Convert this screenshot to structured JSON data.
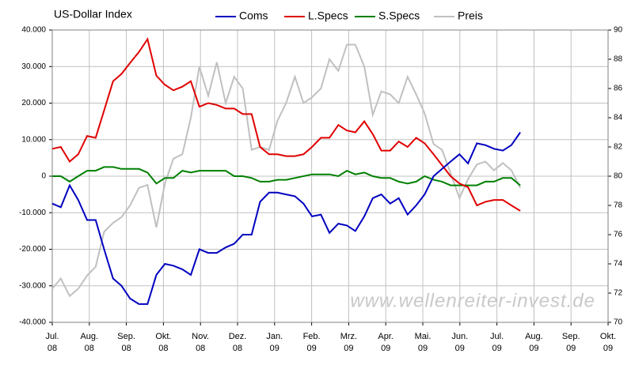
{
  "chart_data": {
    "type": "line",
    "title": "US-Dollar Index",
    "x": [
      0,
      0.23,
      0.47,
      0.7,
      0.94,
      1.17,
      1.4,
      1.64,
      1.87,
      2.1,
      2.34,
      2.57,
      2.81,
      3.04,
      3.27,
      3.51,
      3.74,
      3.97,
      4.21,
      4.44,
      4.68,
      4.91,
      5.14,
      5.38,
      5.61,
      5.85,
      6.08,
      6.31,
      6.55,
      6.78,
      7.01,
      7.25,
      7.48,
      7.72,
      7.95,
      8.18,
      8.42,
      8.65,
      8.88,
      9.12,
      9.35,
      9.59,
      9.82,
      10.05,
      10.29,
      10.52,
      10.75,
      10.99,
      11.22,
      11.46,
      11.69,
      11.92,
      12.16,
      12.39,
      12.63
    ],
    "series": [
      {
        "name": "Coms",
        "color": "#0000c0",
        "axis": "y",
        "values": [
          -7500,
          -8500,
          -2500,
          -6500,
          -12000,
          -12000,
          -20000,
          -28000,
          -30000,
          -33500,
          -35000,
          -35000,
          -27000,
          -24000,
          -24500,
          -25500,
          -27000,
          -20000,
          -21000,
          -21000,
          -19500,
          -18500,
          -16000,
          -16000,
          -7000,
          -4500,
          -4500,
          -5000,
          -5500,
          -7500,
          -11000,
          -10500,
          -15500,
          -13000,
          -13500,
          -15000,
          -11000,
          -6000,
          -5000,
          -7500,
          -6000,
          -10500,
          -8000,
          -5000,
          0,
          2000,
          4000,
          6000,
          3500,
          9000,
          8500,
          7500,
          7000,
          8500,
          12000
        ]
      },
      {
        "name": "L.Specs",
        "color": "#e00000",
        "axis": "y",
        "values": [
          7500,
          8000,
          4000,
          6000,
          11000,
          10500,
          18000,
          26000,
          28000,
          31000,
          34000,
          37500,
          27500,
          25000,
          23500,
          24500,
          26000,
          19000,
          20000,
          19500,
          18500,
          18500,
          17000,
          17000,
          8000,
          6000,
          6000,
          5500,
          5500,
          6000,
          8000,
          10500,
          10500,
          14000,
          12500,
          12000,
          15000,
          11500,
          7000,
          7000,
          9500,
          8000,
          10500,
          9000,
          6000,
          3000,
          0,
          -2000,
          -3000,
          -8000,
          -7000,
          -6500,
          -6500,
          -8000,
          -9500
        ]
      },
      {
        "name": "S.Specs",
        "color": "#008000",
        "axis": "y",
        "values": [
          0,
          0,
          -1500,
          0,
          1500,
          1500,
          2500,
          2500,
          2000,
          2000,
          2000,
          1000,
          -2000,
          -500,
          -500,
          1500,
          1000,
          1500,
          1500,
          1500,
          1500,
          0,
          0,
          -500,
          -1500,
          -1500,
          -1000,
          -1000,
          -500,
          0,
          500,
          500,
          500,
          0,
          1500,
          500,
          1000,
          0,
          -500,
          -500,
          -1500,
          -2000,
          -1500,
          0,
          -1000,
          -1500,
          -2500,
          -2500,
          -2500,
          -2500,
          -1500,
          -1500,
          -500,
          -500,
          -2500
        ]
      },
      {
        "name": "Preis",
        "color": "#c0c0c0",
        "axis": "y2",
        "values": [
          72.3,
          73,
          71.8,
          72.3,
          73.2,
          73.8,
          76.2,
          76.8,
          77.2,
          78,
          79.2,
          79.4,
          76.5,
          79.5,
          81.2,
          81.5,
          84,
          87.5,
          85.5,
          87.8,
          85,
          86.8,
          86,
          81.8,
          82,
          81.8,
          83.8,
          85,
          86.8,
          85,
          85.4,
          86,
          88,
          87.2,
          89,
          89,
          87.5,
          84.2,
          85.8,
          85.6,
          85,
          86.8,
          85.6,
          84.3,
          82.2,
          81.8,
          80.2,
          78.5,
          79.8,
          80.8,
          81,
          80.4,
          80.9,
          80.4,
          79.2
        ]
      }
    ],
    "xlim": [
      0,
      15
    ],
    "xticks": [
      {
        "value": 0,
        "label": [
          "Jul.",
          "08"
        ]
      },
      {
        "value": 1,
        "label": [
          "Aug.",
          "08"
        ]
      },
      {
        "value": 2,
        "label": [
          "Sep.",
          "08"
        ]
      },
      {
        "value": 3,
        "label": [
          "Okt.",
          "08"
        ]
      },
      {
        "value": 4,
        "label": [
          "Nov.",
          "08"
        ]
      },
      {
        "value": 5,
        "label": [
          "Dez.",
          "08"
        ]
      },
      {
        "value": 6,
        "label": [
          "Jan.",
          "09"
        ]
      },
      {
        "value": 7,
        "label": [
          "Feb.",
          "09"
        ]
      },
      {
        "value": 8,
        "label": [
          "Mrz.",
          "09"
        ]
      },
      {
        "value": 9,
        "label": [
          "Apr.",
          "09"
        ]
      },
      {
        "value": 10,
        "label": [
          "Mai.",
          "09"
        ]
      },
      {
        "value": 11,
        "label": [
          "Jun.",
          "09"
        ]
      },
      {
        "value": 12,
        "label": [
          "Jul.",
          "09"
        ]
      },
      {
        "value": 13,
        "label": [
          "Aug.",
          "09"
        ]
      },
      {
        "value": 14,
        "label": [
          "Sep.",
          "09"
        ]
      },
      {
        "value": 15,
        "label": [
          "Okt.",
          "09"
        ]
      }
    ],
    "ylim": [
      -40000,
      40000
    ],
    "yticks": [
      {
        "value": -40000,
        "label": "-40.000"
      },
      {
        "value": -30000,
        "label": "-30.000"
      },
      {
        "value": -20000,
        "label": "-20.000"
      },
      {
        "value": -10000,
        "label": "-10.000"
      },
      0,
      {
        "value": 10000,
        "label": "10.000"
      },
      {
        "value": 20000,
        "label": "20.000"
      },
      {
        "value": 30000,
        "label": "30.000"
      },
      {
        "value": 40000,
        "label": "40.000"
      }
    ],
    "y2lim": [
      70,
      90
    ],
    "y2ticks": [
      70,
      72,
      74,
      76,
      78,
      80,
      82,
      84,
      86,
      88,
      90
    ],
    "grid": true,
    "legend": "top",
    "annotation": "www.wellenreiter-invest.de"
  }
}
